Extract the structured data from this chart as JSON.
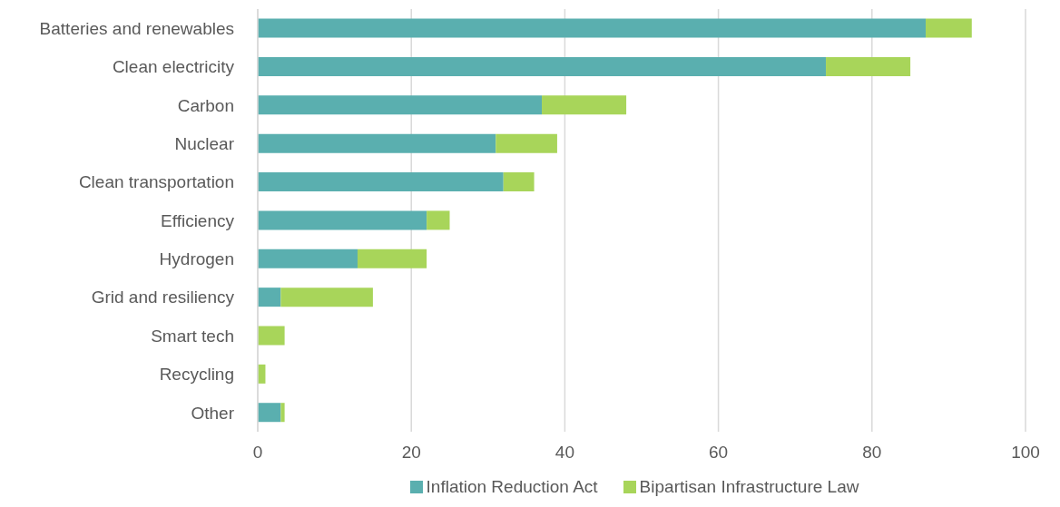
{
  "chart_data": {
    "type": "bar",
    "orientation": "horizontal",
    "stacked": true,
    "categories": [
      "Batteries and renewables",
      "Clean electricity",
      "Carbon",
      "Nuclear",
      "Clean transportation",
      "Efficiency",
      "Hydrogen",
      "Grid and resiliency",
      "Smart tech",
      "Recycling",
      "Other"
    ],
    "series": [
      {
        "name": "Inflation Reduction Act",
        "color": "#5aafaf",
        "values": [
          87,
          74,
          37,
          31,
          32,
          22,
          13,
          3,
          0,
          0,
          3
        ]
      },
      {
        "name": "Bipartisan Infrastructure Law",
        "color": "#a8d55a",
        "values": [
          6,
          11,
          11,
          8,
          4,
          3,
          9,
          12,
          3.5,
          1,
          0.5
        ]
      }
    ],
    "xlim": [
      0,
      100
    ],
    "xticks": [
      0,
      20,
      40,
      60,
      80,
      100
    ],
    "grid": "x",
    "legend": "bottom"
  }
}
